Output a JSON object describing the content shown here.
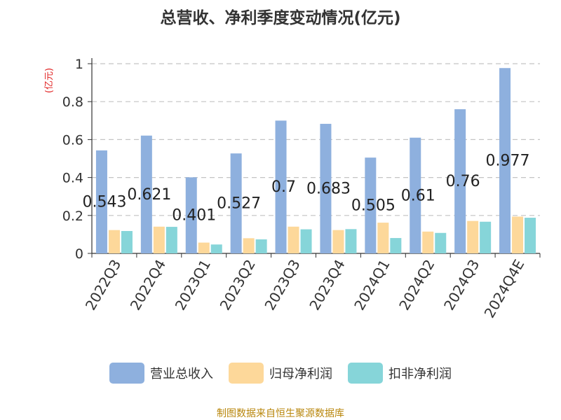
{
  "chart_data": {
    "type": "bar",
    "title": "总营收、净利季度变动情况(亿元)",
    "ylabel": "(亿元)",
    "categories": [
      "2022Q3",
      "2022Q4",
      "2023Q1",
      "2023Q2",
      "2023Q3",
      "2023Q4",
      "2024Q1",
      "2024Q2",
      "2024Q3",
      "2024Q4E"
    ],
    "series": [
      {
        "name": "营业总收入",
        "color": "#8eb0de",
        "values": [
          0.543,
          0.621,
          0.401,
          0.527,
          0.7,
          0.683,
          0.505,
          0.61,
          0.76,
          0.977
        ]
      },
      {
        "name": "归母净利润",
        "color": "#fdd89a",
        "values": [
          0.123,
          0.141,
          0.057,
          0.08,
          0.141,
          0.123,
          0.162,
          0.115,
          0.171,
          0.194
        ]
      },
      {
        "name": "扣非净利润",
        "color": "#86d5d9",
        "values": [
          0.118,
          0.14,
          0.047,
          0.074,
          0.127,
          0.128,
          0.081,
          0.108,
          0.167,
          0.188
        ]
      }
    ],
    "data_labels": [
      "0.543",
      "0.621",
      "0.401",
      "0.527",
      "0.7",
      "0.683",
      "0.505",
      "0.61",
      "0.76",
      "0.977"
    ],
    "ylim": [
      0,
      1
    ],
    "yticks": [
      0,
      0.2,
      0.4,
      0.6,
      0.8,
      1
    ],
    "ytick_labels": [
      "0",
      "0.2",
      "0.4",
      "0.6",
      "0.8",
      "1"
    ],
    "grid": true,
    "legend_position": "bottom"
  },
  "footer": {
    "source": "制图数据来自恒生聚源数据库"
  }
}
